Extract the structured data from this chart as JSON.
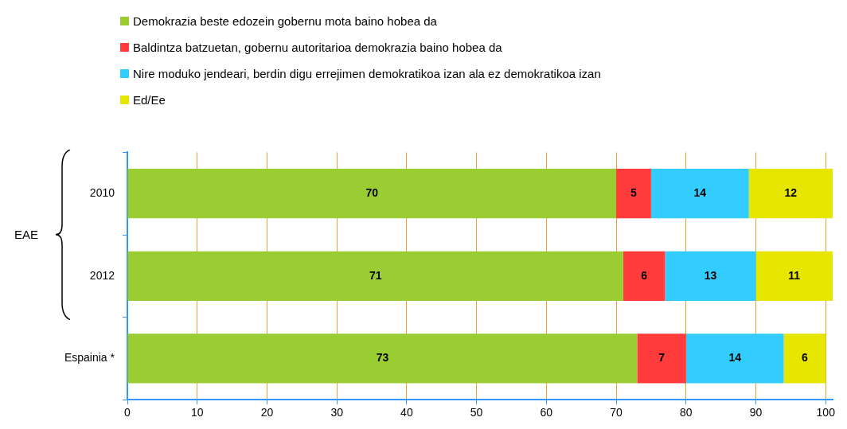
{
  "chart_data": {
    "type": "bar",
    "orientation": "horizontal",
    "stacked": true,
    "categories": [
      "2010",
      "2012",
      "Espainia *"
    ],
    "series": [
      {
        "name": "Demokrazia beste edozein gobernu mota baino hobea da",
        "color": "#9acd32",
        "values": [
          70,
          71,
          73
        ]
      },
      {
        "name": "Baldintza batzuetan, gobernu autoritarioa demokrazia baino hobea da",
        "color": "#ff3b3b",
        "values": [
          5,
          6,
          7
        ]
      },
      {
        "name": "Nire moduko jendeari, berdin digu errejimen demokratikoa izan ala ez demokratikoa izan",
        "color": "#33ccff",
        "values": [
          14,
          13,
          14
        ]
      },
      {
        "name": "Ed/Ee",
        "color": "#e6e600",
        "values": [
          12,
          11,
          6
        ]
      }
    ],
    "xlim": [
      0,
      101
    ],
    "xticks": [
      0,
      10,
      20,
      30,
      40,
      50,
      60,
      70,
      80,
      90,
      100
    ],
    "grid": "x",
    "legend": "top",
    "data_labels": true,
    "annotations": [
      "EAE"
    ]
  }
}
